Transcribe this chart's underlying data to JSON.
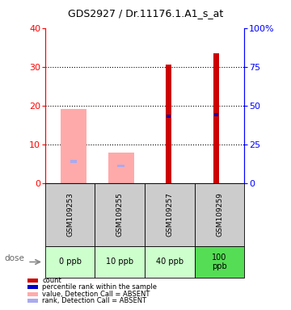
{
  "title": "GDS2927 / Dr.11176.1.A1_s_at",
  "samples": [
    "GSM109253",
    "GSM109255",
    "GSM109257",
    "GSM109259"
  ],
  "doses": [
    "0 ppb",
    "10 ppb",
    "40 ppb",
    "100\nppb"
  ],
  "count_values": [
    null,
    null,
    30.5,
    33.5
  ],
  "rank_values": [
    null,
    null,
    43.0,
    44.0
  ],
  "value_absent": [
    19.0,
    7.8,
    null,
    null
  ],
  "rank_absent_vals": [
    14.0,
    11.0,
    null,
    null
  ],
  "ylim_left": [
    0,
    40
  ],
  "ylim_right": [
    0,
    100
  ],
  "left_ticks": [
    0,
    10,
    20,
    30,
    40
  ],
  "right_ticks": [
    0,
    25,
    50,
    75,
    100
  ],
  "count_color": "#cc0000",
  "rank_color": "#0000cc",
  "value_absent_color": "#ffaaaa",
  "rank_absent_color": "#aaaaee",
  "dose_bg_color_normal": "#ccffcc",
  "dose_bg_color_highlight": "#55dd55",
  "sample_bg_color": "#cccccc",
  "legend_labels": [
    "count",
    "percentile rank within the sample",
    "value, Detection Call = ABSENT",
    "rank, Detection Call = ABSENT"
  ],
  "legend_colors": [
    "#cc0000",
    "#0000cc",
    "#ffaaaa",
    "#aaaaee"
  ]
}
